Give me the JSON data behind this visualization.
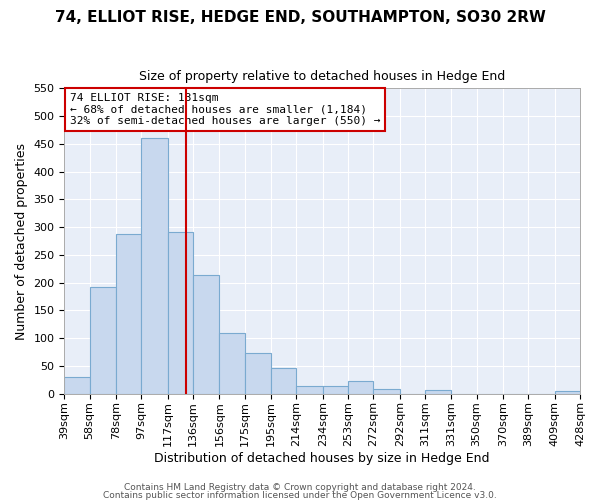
{
  "title": "74, ELLIOT RISE, HEDGE END, SOUTHAMPTON, SO30 2RW",
  "subtitle": "Size of property relative to detached houses in Hedge End",
  "xlabel": "Distribution of detached houses by size in Hedge End",
  "ylabel": "Number of detached properties",
  "bar_color": "#c8d8ee",
  "bar_edge_color": "#7aaad0",
  "plot_bg_color": "#e8eef8",
  "fig_bg_color": "#ffffff",
  "grid_color": "#ffffff",
  "bin_edges": [
    39,
    58,
    78,
    97,
    117,
    136,
    156,
    175,
    195,
    214,
    234,
    253,
    272,
    292,
    311,
    331,
    350,
    370,
    389,
    409,
    428
  ],
  "bin_labels": [
    "39sqm",
    "58sqm",
    "78sqm",
    "97sqm",
    "117sqm",
    "136sqm",
    "156sqm",
    "175sqm",
    "195sqm",
    "214sqm",
    "234sqm",
    "253sqm",
    "272sqm",
    "292sqm",
    "311sqm",
    "331sqm",
    "350sqm",
    "370sqm",
    "389sqm",
    "409sqm",
    "428sqm"
  ],
  "counts": [
    30,
    192,
    287,
    460,
    292,
    213,
    110,
    73,
    46,
    14,
    14,
    22,
    9,
    0,
    6,
    0,
    0,
    0,
    0,
    4
  ],
  "property_size": 131,
  "vline_color": "#cc0000",
  "annotation_title": "74 ELLIOT RISE: 131sqm",
  "annotation_line1": "← 68% of detached houses are smaller (1,184)",
  "annotation_line2": "32% of semi-detached houses are larger (550) →",
  "annotation_box_edgecolor": "#cc0000",
  "annotation_box_facecolor": "#ffffff",
  "ylim": [
    0,
    550
  ],
  "yticks": [
    0,
    50,
    100,
    150,
    200,
    250,
    300,
    350,
    400,
    450,
    500,
    550
  ],
  "footer1": "Contains HM Land Registry data © Crown copyright and database right 2024.",
  "footer2": "Contains public sector information licensed under the Open Government Licence v3.0.",
  "title_fontsize": 11,
  "subtitle_fontsize": 9,
  "axis_label_fontsize": 9,
  "tick_fontsize": 8,
  "annotation_fontsize": 8,
  "footer_fontsize": 6.5
}
